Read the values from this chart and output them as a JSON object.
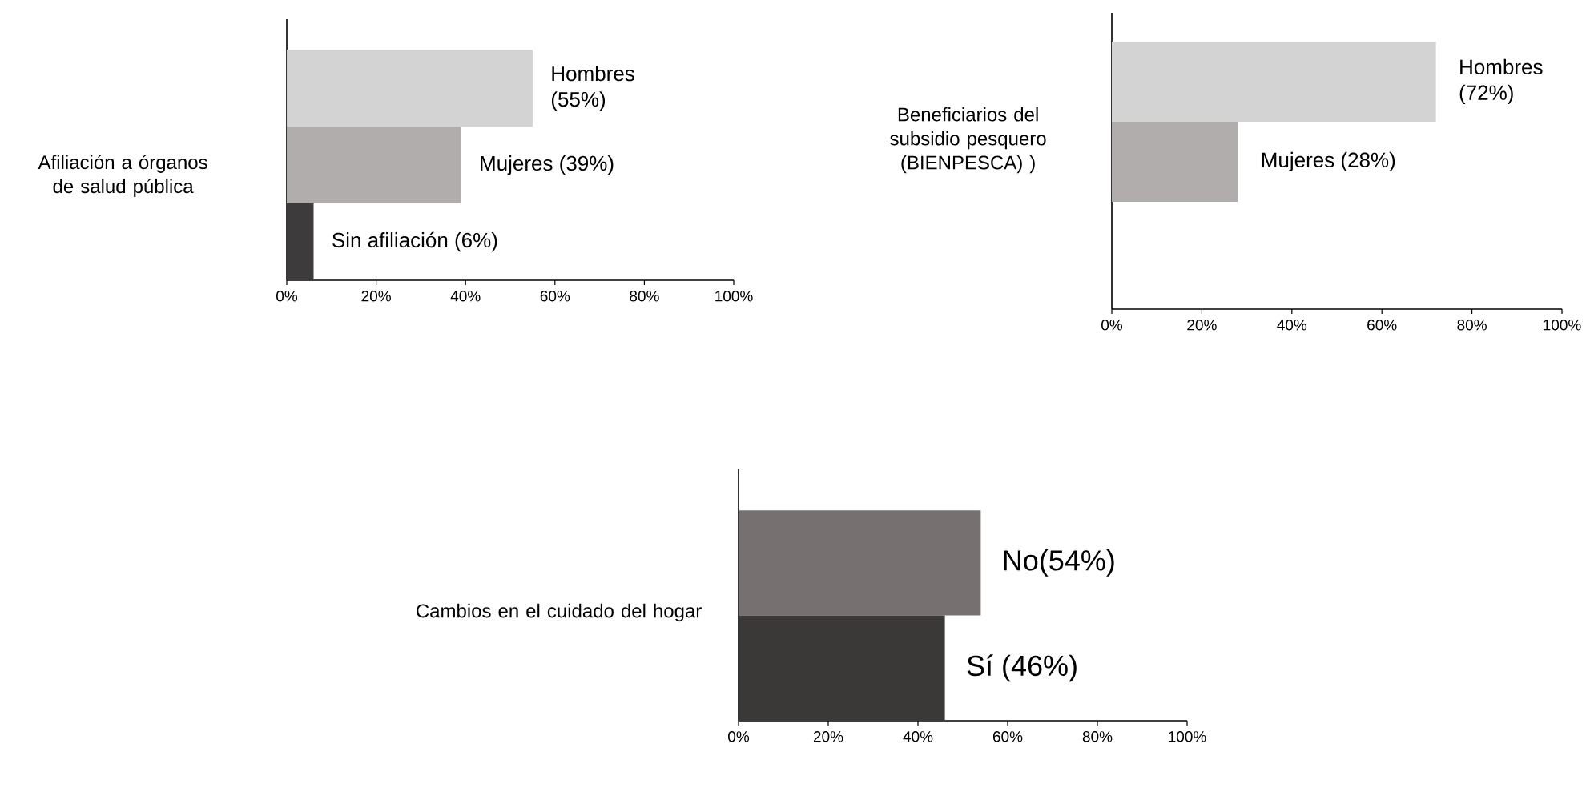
{
  "chart_data": [
    {
      "type": "bar",
      "orientation": "horizontal",
      "ylabel": "Afiliación  a órganos de salud pública",
      "categories": [
        null,
        null,
        null
      ],
      "values": [
        55,
        39,
        6
      ],
      "colors": [
        "#d3d3d3",
        "#b0adac",
        "#3d3b3b"
      ],
      "value_labels": [
        "Hombres (55%)",
        "Mujeres (39%)",
        "Sin afiliación (6%)"
      ],
      "xlim": [
        0,
        100
      ],
      "xticks": [
        {
          "value": 0,
          "label": "0%"
        },
        {
          "value": 20,
          "label": "20%"
        },
        {
          "value": 40,
          "label": "40%"
        },
        {
          "value": 60,
          "label": "60%"
        },
        {
          "value": 80,
          "label": "80%"
        },
        {
          "value": 100,
          "label": "100%"
        }
      ],
      "tick_labels": "x"
    },
    {
      "type": "bar",
      "orientation": "horizontal",
      "ylabel": "Beneficiarios del subsidio pesquero (BIENPESCA) )",
      "categories": [
        null,
        null
      ],
      "values": [
        72,
        28
      ],
      "colors": [
        "#d3d3d3",
        "#b0adac"
      ],
      "value_labels": [
        "Hombres (72%)",
        "Mujeres (28%)"
      ],
      "xlim": [
        0,
        100
      ],
      "xticks": [
        {
          "value": 0,
          "label": "0%"
        },
        {
          "value": 20,
          "label": "20%"
        },
        {
          "value": 40,
          "label": "40%"
        },
        {
          "value": 60,
          "label": "60%"
        },
        {
          "value": 80,
          "label": "80%"
        },
        {
          "value": 100,
          "label": "100%"
        }
      ],
      "tick_labels": "x"
    },
    {
      "type": "bar",
      "orientation": "horizontal",
      "ylabel": "Cambios en el cuidado del hogar",
      "categories": [
        null,
        null
      ],
      "values": [
        54,
        46
      ],
      "colors": [
        "#767170",
        "#3b3938"
      ],
      "value_labels": [
        "No(54%)",
        "Sí (46%)"
      ],
      "xlim": [
        0,
        100
      ],
      "xticks": [
        {
          "value": 0,
          "label": "0%"
        },
        {
          "value": 20,
          "label": "20%"
        },
        {
          "value": 40,
          "label": "40%"
        },
        {
          "value": 60,
          "label": "60%"
        },
        {
          "value": 80,
          "label": "80%"
        },
        {
          "value": 100,
          "label": "100%"
        }
      ],
      "tick_labels": "x"
    }
  ]
}
